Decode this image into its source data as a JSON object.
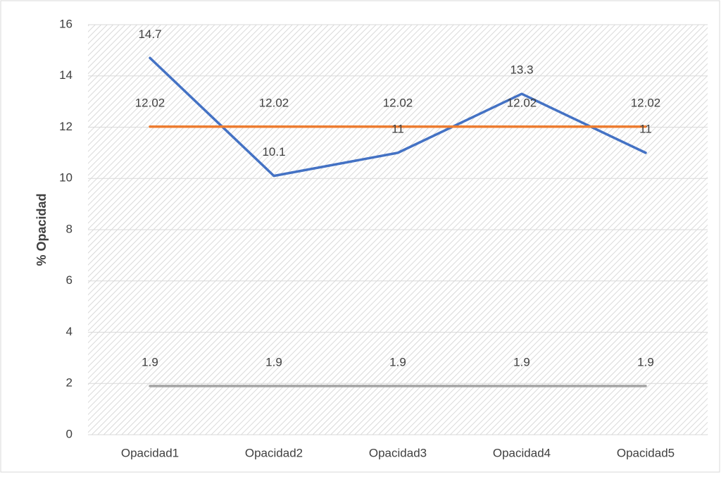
{
  "chart_data": {
    "type": "line",
    "y_label": "% Opacidad",
    "categories": [
      "Opacidad1",
      "Opacidad2",
      "Opacidad3",
      "Opacidad4",
      "Opacidad5"
    ],
    "series": [
      {
        "color": "#4472c4",
        "values": [
          14.7,
          10.1,
          11,
          13.3,
          11
        ]
      },
      {
        "color": "#ed7d31",
        "values": [
          12.02,
          12.02,
          12.02,
          12.02,
          12.02
        ]
      },
      {
        "color": "#a5a5a5",
        "values": [
          1.9,
          1.9,
          1.9,
          1.9,
          1.9
        ]
      }
    ],
    "ylim": [
      0,
      16
    ],
    "yticks": [
      0,
      2,
      4,
      6,
      8,
      10,
      12,
      14,
      16
    ],
    "grid": true,
    "data_labels": true
  }
}
